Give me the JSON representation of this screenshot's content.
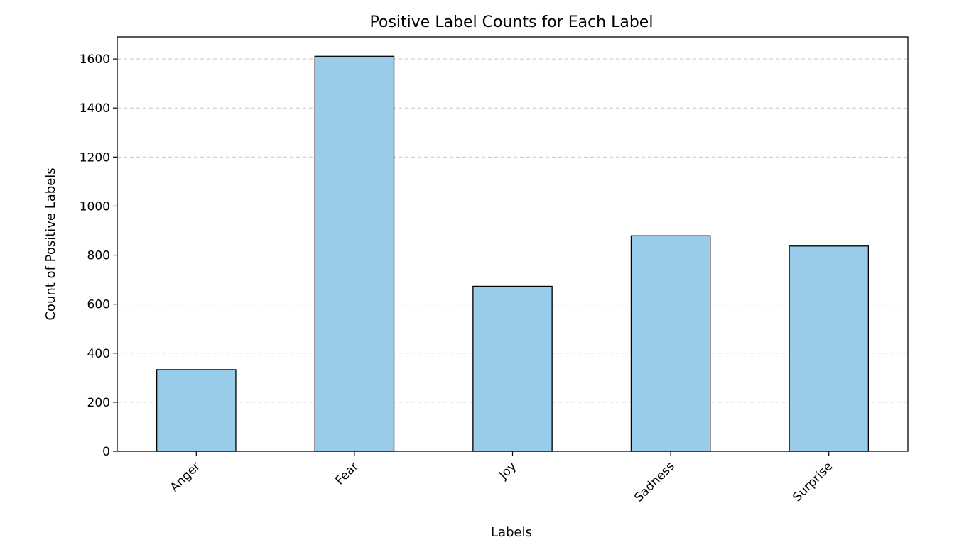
{
  "chart_data": {
    "type": "bar",
    "title": "Positive Label Counts for Each Label",
    "xlabel": "Labels",
    "ylabel": "Count of Positive Labels",
    "categories": [
      "Anger",
      "Fear",
      "Joy",
      "Sadness",
      "Surprise"
    ],
    "values": [
      333,
      1611,
      673,
      879,
      837
    ],
    "ylim": [
      0,
      1690
    ],
    "yticks": [
      0,
      200,
      400,
      600,
      800,
      1000,
      1200,
      1400,
      1600
    ],
    "grid": "y-dashed",
    "legend": "none",
    "bar_color": "#99cbea",
    "edge_color": "#000000"
  }
}
